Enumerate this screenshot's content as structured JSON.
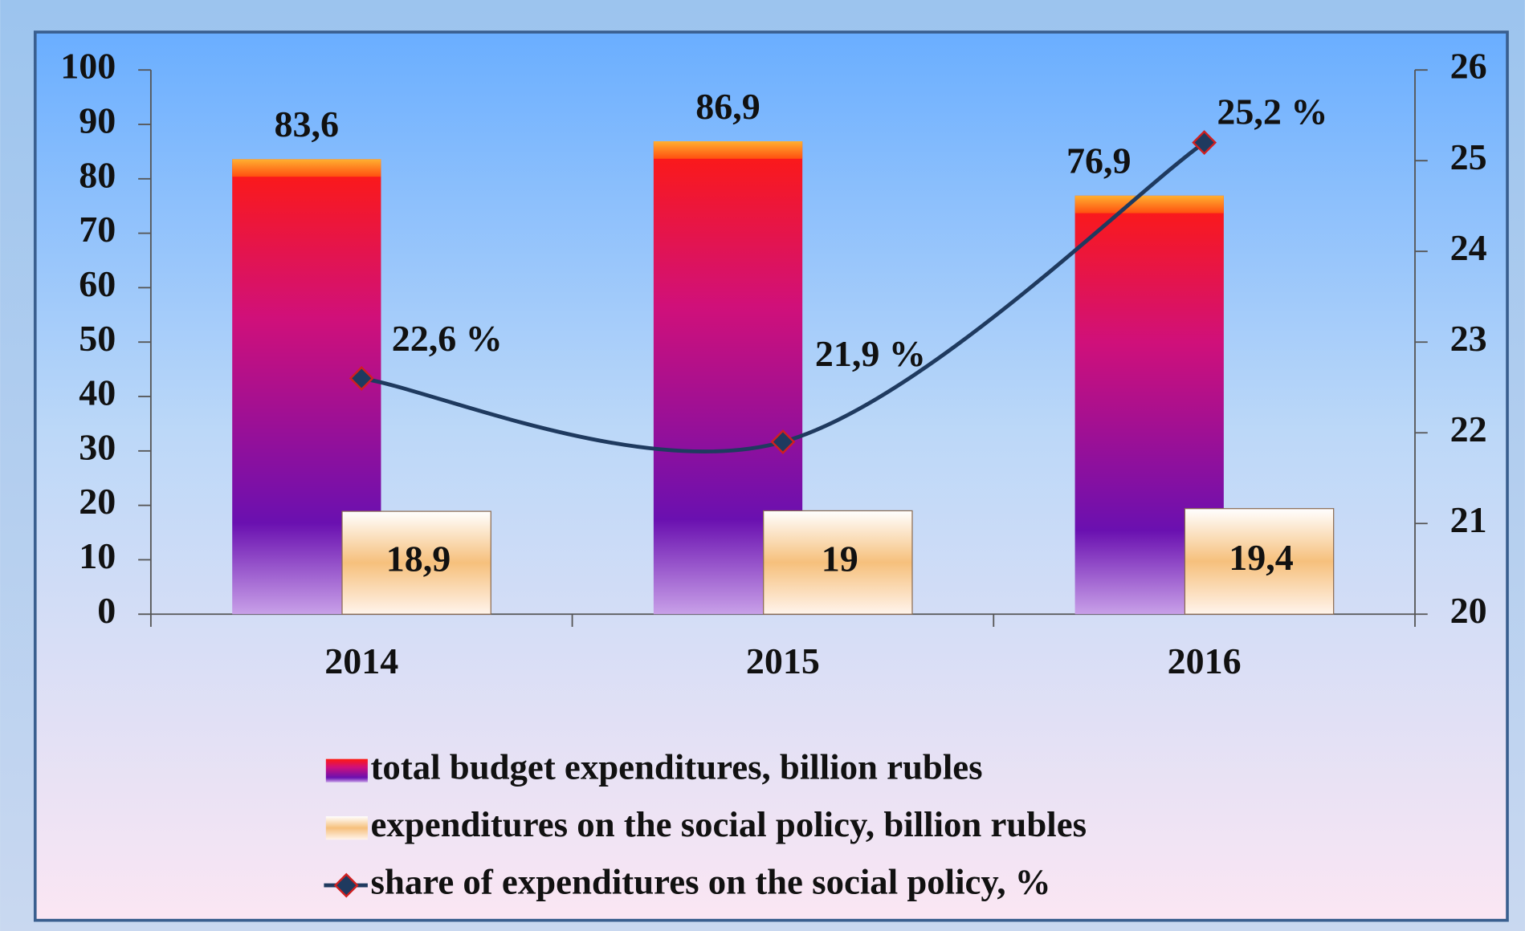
{
  "chart_data": {
    "type": "bar",
    "categories": [
      "2014",
      "2015",
      "2016"
    ],
    "series": [
      {
        "name": "total budget expenditures, billion rubles",
        "color": "#e0106a",
        "values": [
          83.6,
          86.9,
          76.9
        ],
        "value_labels": [
          "83,6",
          "86,9",
          "76,9"
        ]
      },
      {
        "name": "expenditures on the social policy, billion rubles",
        "color": "#f7c890",
        "values": [
          18.9,
          19,
          19.4
        ],
        "value_labels": [
          "18,9",
          "19",
          "19,4"
        ]
      },
      {
        "name": "share of expenditures on the social policy, %",
        "color": "#1f3a5f",
        "type": "line",
        "axis": "y2",
        "values": [
          22.6,
          21.9,
          25.2
        ],
        "value_labels": [
          "22,6 %",
          "21,9 %",
          "25,2 %"
        ]
      }
    ],
    "ylim": [
      0,
      100
    ],
    "yticks": [
      0,
      10,
      20,
      30,
      40,
      50,
      60,
      70,
      80,
      90,
      100
    ],
    "y2lim": [
      20,
      26
    ],
    "y2ticks": [
      20,
      21,
      22,
      23,
      24,
      25,
      26
    ],
    "legend": "bottom",
    "grid": false
  }
}
